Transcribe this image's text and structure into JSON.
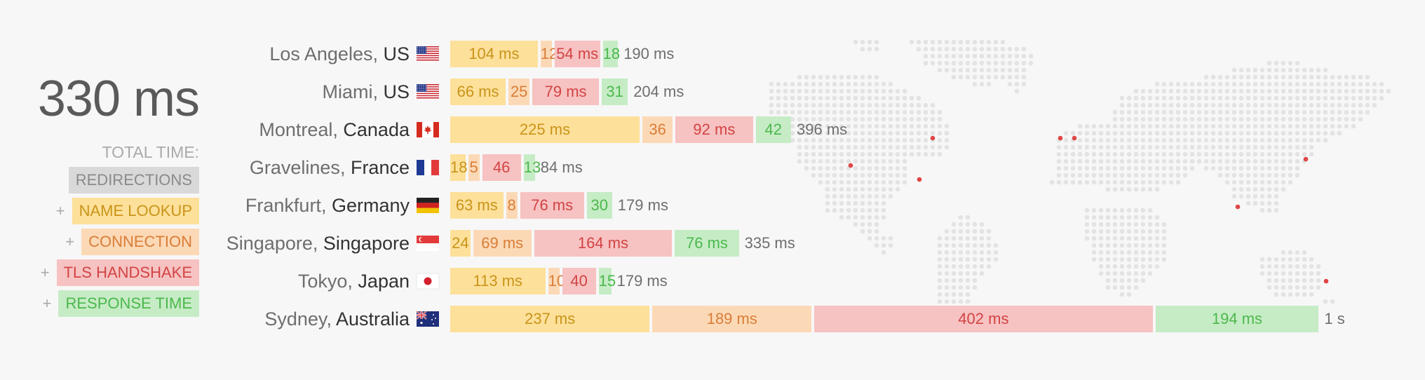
{
  "summary": {
    "total": "330 ms",
    "total_label": "TOTAL TIME:",
    "legend": [
      {
        "plus": "",
        "label": "REDIRECTIONS",
        "cls": "lb-redir"
      },
      {
        "plus": "+",
        "label": "NAME LOOKUP",
        "cls": "lb-name"
      },
      {
        "plus": "+",
        "label": "CONNECTION",
        "cls": "lb-conn"
      },
      {
        "plus": "+",
        "label": "TLS HANDSHAKE",
        "cls": "lb-tls"
      },
      {
        "plus": "+",
        "label": "RESPONSE TIME",
        "cls": "lb-resp"
      }
    ]
  },
  "colors": {
    "name_lookup": "#fde09a",
    "connection": "#fcd9b6",
    "tls_handshake": "#f7c2c2",
    "response_time": "#c6ecc6",
    "redirections": "#d9d9d9",
    "map_dot": "#e3e3e3",
    "marker": "#e04646"
  },
  "chart_data": {
    "type": "bar",
    "stacked": true,
    "orientation": "horizontal",
    "unit": "ms",
    "segment_order": [
      "name_lookup",
      "connection",
      "tls_handshake",
      "response_time"
    ],
    "rows": [
      {
        "city": "Los Angeles",
        "country": "US",
        "flag": "us",
        "values": [
          104,
          12,
          54,
          18
        ],
        "labels": [
          "104 ms",
          "12",
          "54 ms",
          "18"
        ],
        "total": "190 ms"
      },
      {
        "city": "Miami",
        "country": "US",
        "flag": "us",
        "values": [
          66,
          25,
          79,
          31
        ],
        "labels": [
          "66 ms",
          "25",
          "79 ms",
          "31"
        ],
        "total": "204 ms"
      },
      {
        "city": "Montreal",
        "country": "Canada",
        "flag": "ca",
        "values": [
          225,
          36,
          92,
          42
        ],
        "labels": [
          "225 ms",
          "36",
          "92 ms",
          "42"
        ],
        "total": "396 ms"
      },
      {
        "city": "Gravelines",
        "country": "France",
        "flag": "fr",
        "values": [
          18,
          5,
          46,
          13
        ],
        "labels": [
          "18",
          "5",
          "46",
          "13"
        ],
        "total": "84 ms"
      },
      {
        "city": "Frankfurt",
        "country": "Germany",
        "flag": "de",
        "values": [
          63,
          8,
          76,
          30
        ],
        "labels": [
          "63 ms",
          "8",
          "76 ms",
          "30"
        ],
        "total": "179 ms"
      },
      {
        "city": "Singapore",
        "country": "Singapore",
        "flag": "sg",
        "values": [
          24,
          69,
          164,
          76
        ],
        "labels": [
          "24",
          "69 ms",
          "164 ms",
          "76 ms"
        ],
        "total": "335 ms"
      },
      {
        "city": "Tokyo",
        "country": "Japan",
        "flag": "jp",
        "values": [
          113,
          10,
          40,
          15
        ],
        "labels": [
          "113 ms",
          "10",
          "40",
          "15"
        ],
        "total": "179 ms"
      },
      {
        "city": "Sydney",
        "country": "Australia",
        "flag": "au",
        "values": [
          237,
          189,
          402,
          194
        ],
        "labels": [
          "237 ms",
          "189 ms",
          "402 ms",
          "194 ms"
        ],
        "total": "1 s"
      }
    ],
    "map_markers": [
      "Los Angeles",
      "Miami",
      "Montreal",
      "Gravelines",
      "Frankfurt",
      "Singapore",
      "Tokyo",
      "Sydney"
    ]
  }
}
